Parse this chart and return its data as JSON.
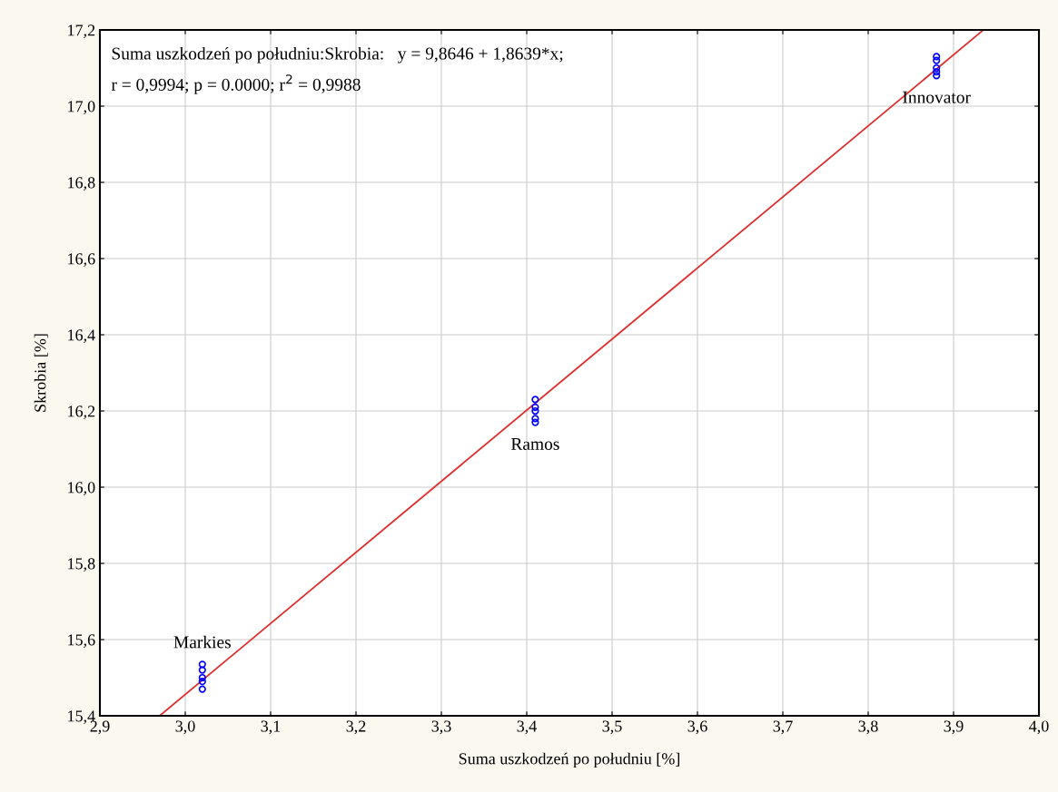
{
  "chart_data": {
    "type": "scatter",
    "xlabel": "Suma uszkodzeń po południu [%]",
    "ylabel": "Skrobia [%]",
    "xlim": [
      2.9,
      4.0
    ],
    "ylim": [
      15.4,
      17.2
    ],
    "xticks": [
      {
        "value": 2.9,
        "label": "2,9"
      },
      {
        "value": 3.0,
        "label": "3,0"
      },
      {
        "value": 3.1,
        "label": "3,1"
      },
      {
        "value": 3.2,
        "label": "3,2"
      },
      {
        "value": 3.3,
        "label": "3,3"
      },
      {
        "value": 3.4,
        "label": "3,4"
      },
      {
        "value": 3.5,
        "label": "3,5"
      },
      {
        "value": 3.6,
        "label": "3,6"
      },
      {
        "value": 3.7,
        "label": "3,7"
      },
      {
        "value": 3.8,
        "label": "3,8"
      },
      {
        "value": 3.9,
        "label": "3,9"
      },
      {
        "value": 4.0,
        "label": "4,0"
      }
    ],
    "yticks": [
      {
        "value": 15.4,
        "label": "15,4"
      },
      {
        "value": 15.6,
        "label": "15,6"
      },
      {
        "value": 15.8,
        "label": "15,8"
      },
      {
        "value": 16.0,
        "label": "16,0"
      },
      {
        "value": 16.2,
        "label": "16,2"
      },
      {
        "value": 16.4,
        "label": "16,4"
      },
      {
        "value": 16.6,
        "label": "16,6"
      },
      {
        "value": 16.8,
        "label": "16,8"
      },
      {
        "value": 17.0,
        "label": "17,0"
      },
      {
        "value": 17.2,
        "label": "17,2"
      }
    ],
    "grid": true,
    "series": [
      {
        "marker": "circle",
        "color": "#0000ff",
        "x": [
          3.02,
          3.02,
          3.02,
          3.02,
          3.02,
          3.41,
          3.41,
          3.41,
          3.41,
          3.41,
          3.88,
          3.88,
          3.88,
          3.88,
          3.88
        ],
        "values": [
          15.47,
          15.49,
          15.5,
          15.52,
          15.535,
          16.17,
          16.18,
          16.2,
          16.21,
          16.23,
          17.08,
          17.09,
          17.1,
          17.12,
          17.13
        ]
      },
      {
        "type": "line",
        "color": "#e03030",
        "x": [
          2.97,
          3.935
        ],
        "values": [
          15.4,
          17.2
        ]
      }
    ],
    "annotations": [
      "Suma uszkodzeń po południu:Skrobia:   y = 9,8646 + 1,8639*x;",
      "r = 0,9994; p = 0.0000; r$^{2}$ = 0,9988",
      {
        "text": "Markies",
        "x": 3.02,
        "y": 15.535
      },
      {
        "text": "Ramos",
        "x": 3.41,
        "y": 16.17
      },
      {
        "text": "Innovator",
        "x": 3.88,
        "y": 17.08
      }
    ]
  }
}
